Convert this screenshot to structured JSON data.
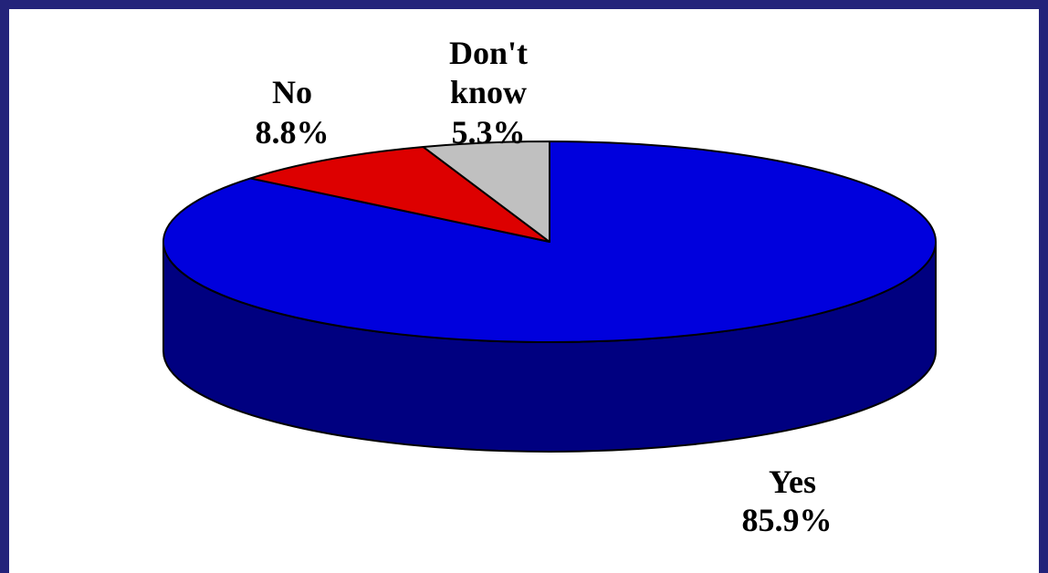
{
  "colors": {
    "frame_border": "#23237a",
    "background": "#ffffff",
    "yes_top": "#0000dd",
    "yes_side": "#000080",
    "no": "#dd0000",
    "dont_know": "#c0c0c0",
    "outline": "#000000"
  },
  "chart_data": {
    "type": "pie",
    "style": "3d",
    "title": "",
    "slices": [
      {
        "label": "Yes",
        "value": 85.9,
        "display": "85.9%",
        "color": "#0000dd",
        "side_color": "#000080"
      },
      {
        "label": "No",
        "value": 8.8,
        "display": "8.8%",
        "color": "#dd0000"
      },
      {
        "label": "Don't know",
        "value": 5.3,
        "display": "5.3%",
        "color": "#c0c0c0"
      }
    ]
  }
}
